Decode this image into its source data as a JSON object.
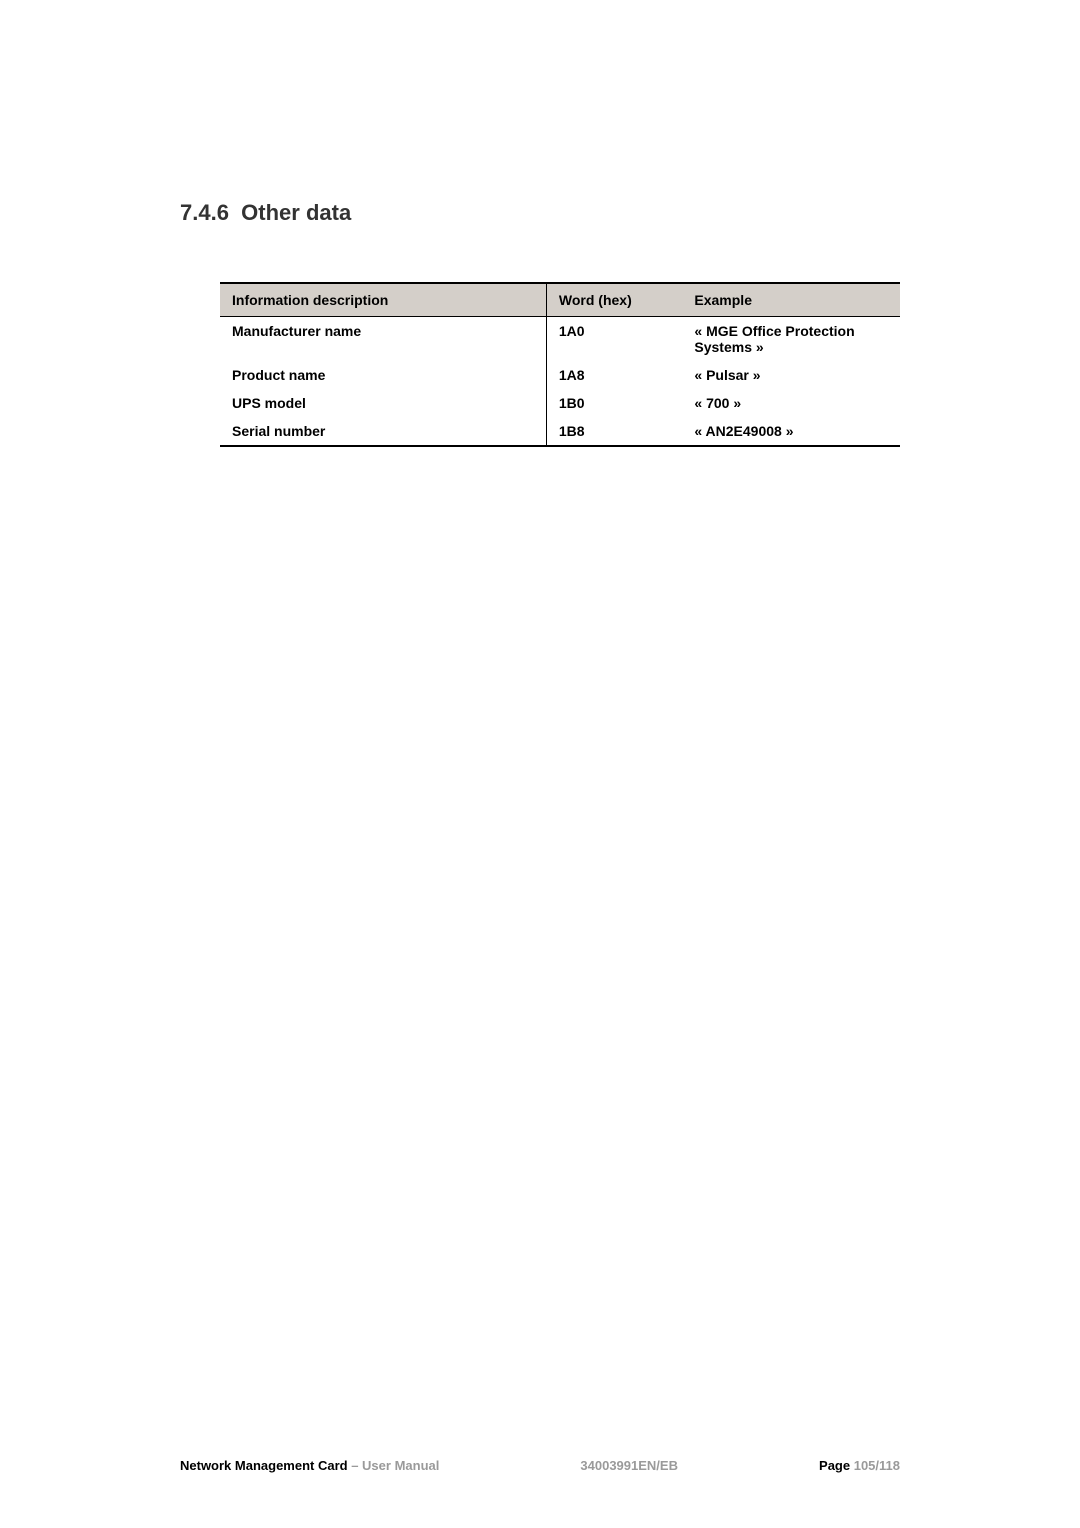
{
  "heading": {
    "number": "7.4.6",
    "title": "Other data"
  },
  "table": {
    "headers": {
      "info": "Information description",
      "word": "Word (hex)",
      "example": "Example"
    },
    "rows": [
      {
        "info": "Manufacturer name",
        "word": "1A0",
        "example": "« MGE Office Protection Systems »"
      },
      {
        "info": "Product name",
        "word": "1A8",
        "example": "« Pulsar »"
      },
      {
        "info": "UPS model",
        "word": "1B0",
        "example": "« 700 »"
      },
      {
        "info": "Serial number",
        "word": "1B8",
        "example": "« AN2E49008 »"
      }
    ]
  },
  "footer": {
    "left_bold": "Network Management Card",
    "left_grey": " – User Manual",
    "center": "34003991EN/EB",
    "right_bold": "Page ",
    "right_grey": "105/118"
  }
}
